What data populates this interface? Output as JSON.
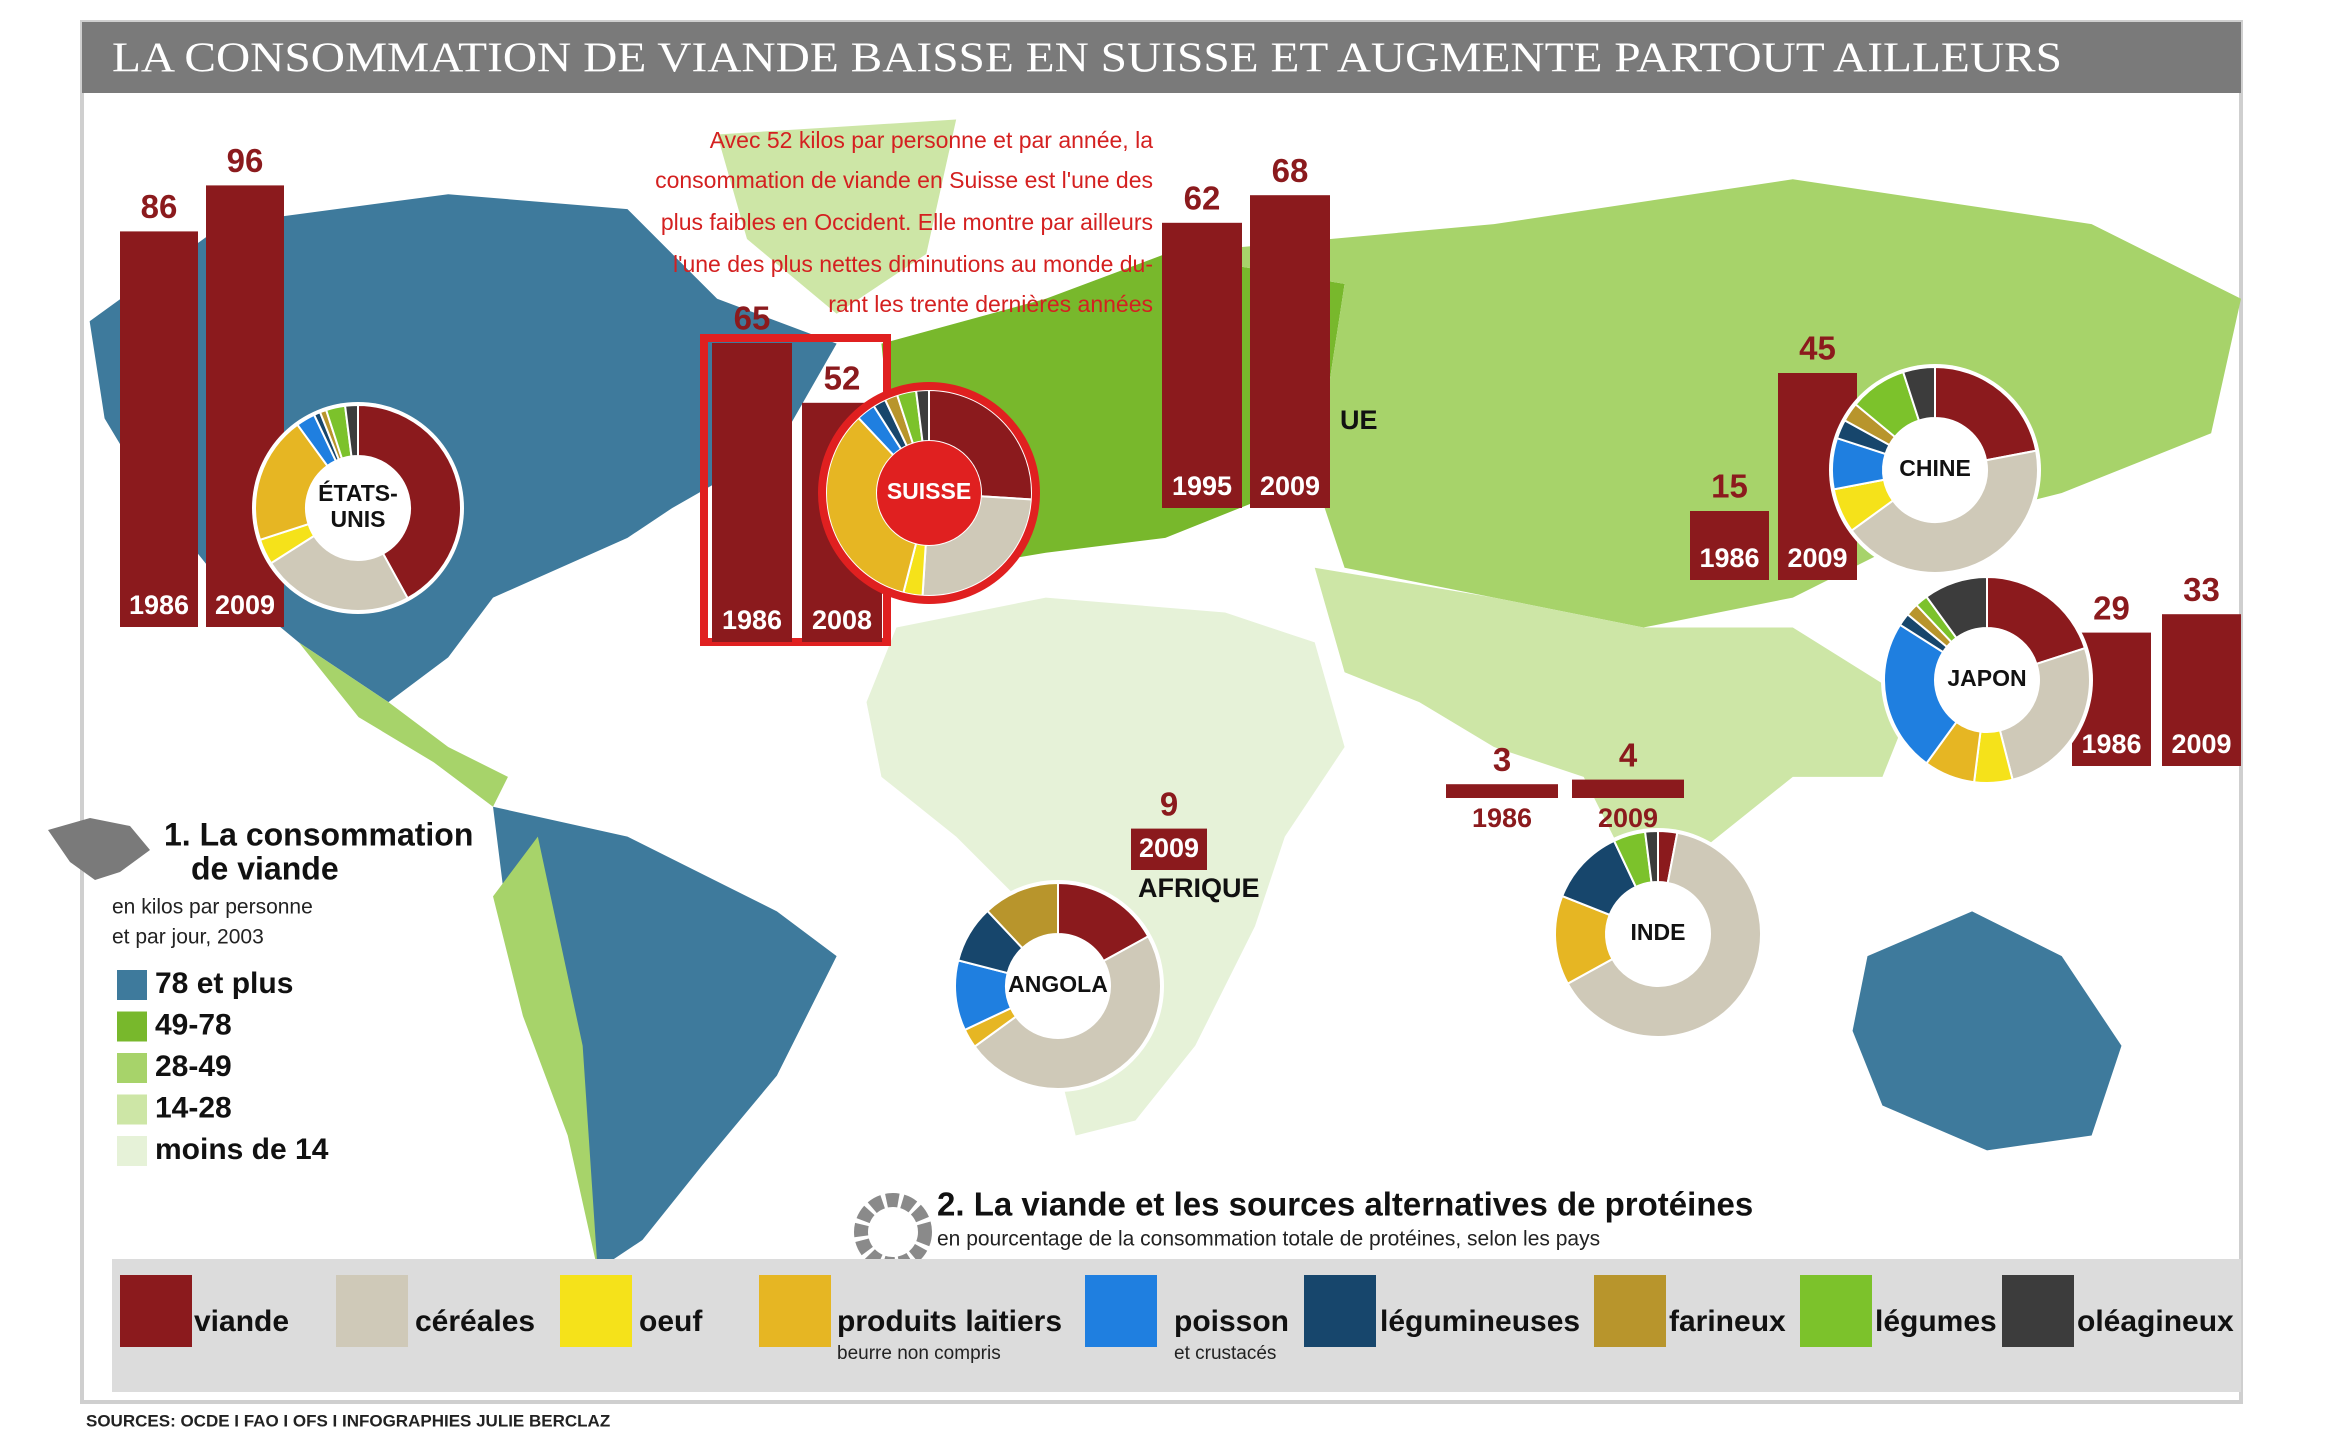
{
  "title": "LA CONSOMMATION DE VIANDE BAISSE EN SUISSE ET AUGMENTE PARTOUT AILLEURS",
  "note": [
    "Avec 52 kilos par personne et par année, la",
    "consommation de viande en Suisse est l'une des",
    "plus faibles en Occident. Elle montre par ailleurs",
    "l'une des plus nettes diminutions au monde du-",
    "rant les trente dernières années"
  ],
  "bar_groups": [
    {
      "bars": [
        {
          "year": "1986",
          "value": 86
        },
        {
          "year": "2009",
          "value": 96
        }
      ]
    },
    {
      "bars": [
        {
          "year": "1986",
          "value": 65
        },
        {
          "year": "2008",
          "value": 52
        }
      ]
    },
    {
      "name": "UE",
      "bars": [
        {
          "year": "1995",
          "value": 62
        },
        {
          "year": "2009",
          "value": 68
        }
      ]
    },
    {
      "bars": [
        {
          "year": "1986",
          "value": 15
        },
        {
          "year": "2009",
          "value": 45
        }
      ]
    },
    {
      "bars": [
        {
          "year": "1986",
          "value": 29
        },
        {
          "year": "2009",
          "value": 33
        }
      ]
    },
    {
      "name": "AFRIQUE",
      "bars": [
        {
          "year": "2009",
          "value": 9
        }
      ]
    },
    {
      "bars": [
        {
          "year": "1986",
          "value": 3
        },
        {
          "year": "2009",
          "value": 4
        }
      ]
    }
  ],
  "donuts": [
    {
      "name": [
        "ÉTATS-",
        "UNIS"
      ],
      "values": [
        42,
        24,
        4,
        20,
        3,
        1,
        1,
        3,
        2
      ]
    },
    {
      "name": [
        "SUISSE"
      ],
      "values": [
        26,
        25,
        3,
        34,
        3,
        2,
        2,
        3,
        2
      ]
    },
    {
      "name": [
        "CHINE"
      ],
      "values": [
        22,
        43,
        7,
        0,
        8,
        3,
        3,
        9,
        5
      ]
    },
    {
      "name": [
        "JAPON"
      ],
      "values": [
        20,
        26,
        6,
        8,
        24,
        2,
        2,
        2,
        10
      ]
    },
    {
      "name": [
        "ANGOLA"
      ],
      "values": [
        17,
        48,
        0,
        3,
        11,
        9,
        12,
        0,
        0
      ]
    },
    {
      "name": [
        "INDE"
      ],
      "values": [
        3,
        64,
        0,
        14,
        0,
        12,
        0,
        5,
        2
      ]
    }
  ],
  "map_legend": {
    "title": [
      "1. La consommation",
      "de viande"
    ],
    "subtitle": [
      "en kilos par personne",
      "et par jour, 2003"
    ],
    "classes": [
      {
        "label": "78 et plus",
        "color": "#3e7a9c"
      },
      {
        "label": "49-78",
        "color": "#78b82c"
      },
      {
        "label": "28-49",
        "color": "#a7d36a"
      },
      {
        "label": "14-28",
        "color": "#cde6a6"
      },
      {
        "label": "moins de 14",
        "color": "#e6f2d8"
      }
    ]
  },
  "protein_legend": {
    "title": "2. La viande et les sources alternatives de protéines",
    "subtitle": "en pourcentage de la consommation totale de protéines, selon les pays",
    "categories": [
      {
        "label": "viande",
        "color": "#8b1a1d"
      },
      {
        "label": "céréales",
        "color": "#cfc9b8"
      },
      {
        "label": "oeuf",
        "color": "#f5e21a"
      },
      {
        "label": "produits laitiers",
        "note": "beurre non compris",
        "color": "#e6b623"
      },
      {
        "label": "poisson",
        "note": "et crustacés",
        "color": "#1f7fe0"
      },
      {
        "label": "légumineuses",
        "color": "#17466c"
      },
      {
        "label": "farineux",
        "color": "#b8952c"
      },
      {
        "label": "légumes",
        "color": "#7cc22b"
      },
      {
        "label": "oléagineux",
        "color": "#3c3c3c"
      }
    ]
  },
  "sources": "SOURCES: OCDE I FAO I OFS I INFOGRAPHIES JULIE BERCLAZ"
}
